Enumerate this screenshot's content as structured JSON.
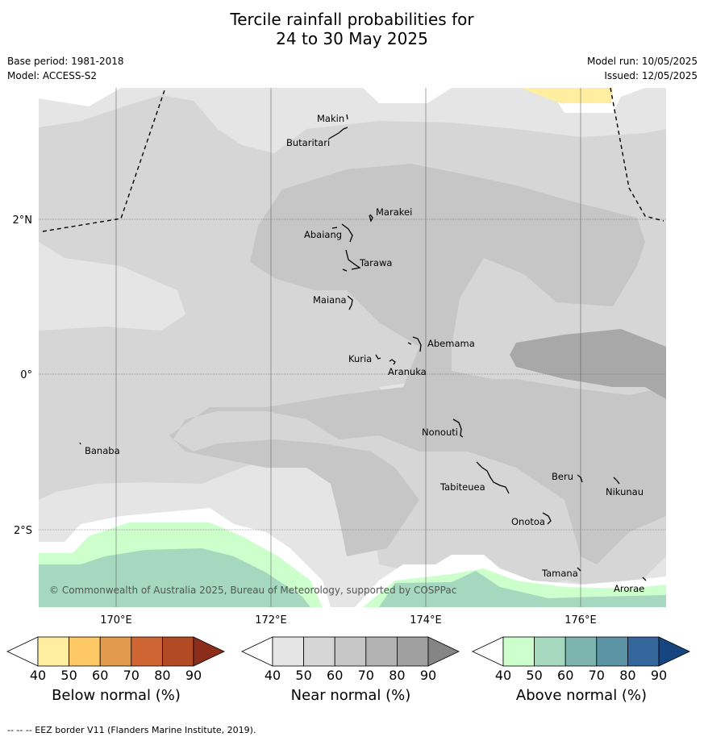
{
  "header": {
    "title_line1": "Tercile rainfall probabilities for",
    "title_line2": "24 to 30 May 2025",
    "base_period": "Base period: 1981-2018",
    "model": "Model: ACCESS-S2",
    "model_run": "Model run: 10/05/2025",
    "issued": "Issued: 12/05/2025"
  },
  "map": {
    "lat_labels": [
      "2°N",
      "0°",
      "2°S"
    ],
    "lon_labels": [
      "170°E",
      "172°E",
      "174°E",
      "176°E"
    ],
    "places": [
      {
        "name": "Makin"
      },
      {
        "name": "Butaritari"
      },
      {
        "name": "Marakei"
      },
      {
        "name": "Abaiang"
      },
      {
        "name": "Tarawa"
      },
      {
        "name": "Maiana"
      },
      {
        "name": "Abemama"
      },
      {
        "name": "Kuria"
      },
      {
        "name": "Aranuka"
      },
      {
        "name": "Nonouti"
      },
      {
        "name": "Banaba"
      },
      {
        "name": "Beru"
      },
      {
        "name": "Tabiteuea"
      },
      {
        "name": "Nikunau"
      },
      {
        "name": "Onotoa"
      },
      {
        "name": "Tamana"
      },
      {
        "name": "Arorae"
      }
    ],
    "copyright": "© Commonwealth of Australia 2025, Bureau of Meteorology, supported by COSPPac"
  },
  "colorbars": [
    {
      "label": "Below normal (%)",
      "ticks": [
        "40",
        "50",
        "60",
        "70",
        "80",
        "90"
      ],
      "colors": [
        "#ffffff",
        "#ffeda0",
        "#fec965",
        "#e29a4c",
        "#cf6532",
        "#b24a26",
        "#8c2d1b"
      ]
    },
    {
      "label": "Near normal (%)",
      "ticks": [
        "40",
        "50",
        "60",
        "70",
        "80",
        "90"
      ],
      "colors": [
        "#ffffff",
        "#e5e5e5",
        "#d6d6d6",
        "#c6c6c6",
        "#b3b3b3",
        "#a0a0a0",
        "#858585"
      ]
    },
    {
      "label": "Above normal (%)",
      "ticks": [
        "40",
        "50",
        "60",
        "70",
        "80",
        "90"
      ],
      "colors": [
        "#ffffff",
        "#ccffcc",
        "#a5d8be",
        "#7db5ae",
        "#5b92a4",
        "#34669b",
        "#17457f"
      ]
    }
  ],
  "footnote": "--  --  -- EEZ border V11 (Flanders Marine Institute, 2019)."
}
